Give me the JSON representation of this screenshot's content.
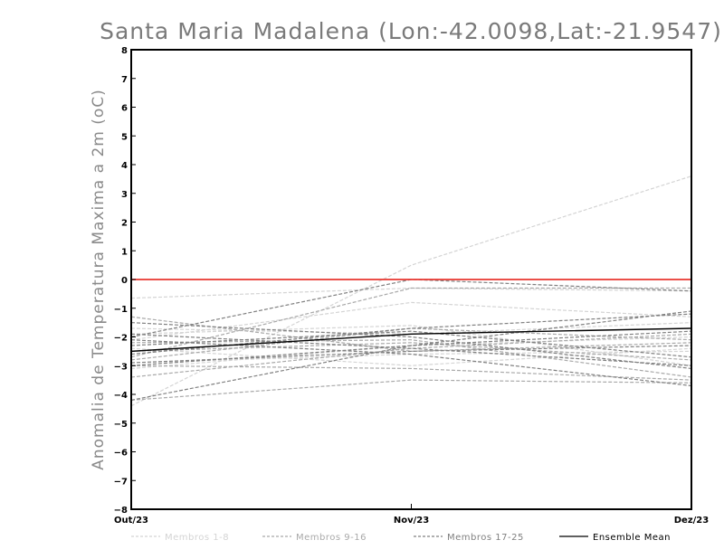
{
  "chart_data": {
    "type": "line",
    "title": "Santa Maria Madalena (Lon:-42.0098,Lat:-21.9547)",
    "xlabel": "",
    "ylabel": "Anomalia de Temperatura Maxima a 2m (oC)",
    "categories": [
      "Out/23",
      "Nov/23",
      "Dez/23"
    ],
    "ylim": [
      -8,
      8
    ],
    "yticks": [
      "8",
      "7",
      "6",
      "5",
      "4",
      "3",
      "2",
      "1",
      "0",
      "−1",
      "−2",
      "−3",
      "−4",
      "−5",
      "−6",
      "−7",
      "−8"
    ],
    "reference_line": {
      "value": 0,
      "color": "#e8362f"
    },
    "legend": [
      "Membros 1-8",
      "Membros 9-16",
      "Membros 17-25",
      "Ensemble Mean"
    ],
    "series": [
      {
        "name": "Membro 1",
        "group": 1,
        "values": [
          -4.4,
          0.5,
          3.6
        ]
      },
      {
        "name": "Membro 2",
        "group": 1,
        "values": [
          -0.65,
          -0.3,
          -0.4
        ]
      },
      {
        "name": "Membro 3",
        "group": 1,
        "values": [
          -2.1,
          -0.8,
          -1.3
        ]
      },
      {
        "name": "Membro 4",
        "group": 1,
        "values": [
          -2.9,
          -2.6,
          -2.5
        ]
      },
      {
        "name": "Membro 5",
        "group": 1,
        "values": [
          -3.1,
          -2.3,
          -2.0
        ]
      },
      {
        "name": "Membro 6",
        "group": 1,
        "values": [
          -1.9,
          -1.6,
          -3.0
        ]
      },
      {
        "name": "Membro 7",
        "group": 1,
        "values": [
          -2.4,
          -3.0,
          -2.4
        ]
      },
      {
        "name": "Membro 8",
        "group": 1,
        "values": [
          -1.7,
          -1.9,
          -1.5
        ]
      },
      {
        "name": "Membro 9",
        "group": 2,
        "values": [
          -2.7,
          -0.3,
          -0.3
        ]
      },
      {
        "name": "Membro 10",
        "group": 2,
        "values": [
          -2.2,
          -2.1,
          -3.4
        ]
      },
      {
        "name": "Membro 11",
        "group": 2,
        "values": [
          -3.0,
          -3.1,
          -3.5
        ]
      },
      {
        "name": "Membro 12",
        "group": 2,
        "values": [
          -1.3,
          -2.5,
          -2.2
        ]
      },
      {
        "name": "Membro 13",
        "group": 2,
        "values": [
          -2.5,
          -2.2,
          -2.8
        ]
      },
      {
        "name": "Membro 14",
        "group": 2,
        "values": [
          -3.4,
          -2.4,
          -1.9
        ]
      },
      {
        "name": "Membro 15",
        "group": 2,
        "values": [
          -2.8,
          -1.7,
          -2.1
        ]
      },
      {
        "name": "Membro 16",
        "group": 2,
        "values": [
          -4.2,
          -3.5,
          -3.6
        ]
      },
      {
        "name": "Membro 17",
        "group": 3,
        "values": [
          -2.0,
          0.0,
          -0.4
        ]
      },
      {
        "name": "Membro 18",
        "group": 3,
        "values": [
          -4.2,
          -2.3,
          -1.1
        ]
      },
      {
        "name": "Membro 19",
        "group": 3,
        "values": [
          -2.3,
          -1.8,
          -2.7
        ]
      },
      {
        "name": "Membro 20",
        "group": 3,
        "values": [
          -1.5,
          -2.0,
          -3.1
        ]
      },
      {
        "name": "Membro 21",
        "group": 3,
        "values": [
          -2.6,
          -1.7,
          -1.2
        ]
      },
      {
        "name": "Membro 22",
        "group": 3,
        "values": [
          -2.9,
          -2.5,
          -2.3
        ]
      },
      {
        "name": "Membro 23",
        "group": 3,
        "values": [
          -1.9,
          -2.4,
          -3.0
        ]
      },
      {
        "name": "Membro 24",
        "group": 3,
        "values": [
          -2.1,
          -2.6,
          -3.7
        ]
      },
      {
        "name": "Membro 25",
        "group": 3,
        "values": [
          -3.0,
          -2.3,
          -1.8
        ]
      },
      {
        "name": "Ensemble Mean",
        "group": 4,
        "values": [
          -2.5,
          -1.9,
          -1.7
        ]
      }
    ],
    "group_styles": {
      "1": {
        "color": "#d4d4d4",
        "dash": "4,2",
        "width": 1.2
      },
      "2": {
        "color": "#a9a9a9",
        "dash": "4,2",
        "width": 1.2
      },
      "3": {
        "color": "#808080",
        "dash": "4,2",
        "width": 1.2
      },
      "4": {
        "color": "#000000",
        "dash": "",
        "width": 1.4
      }
    }
  }
}
